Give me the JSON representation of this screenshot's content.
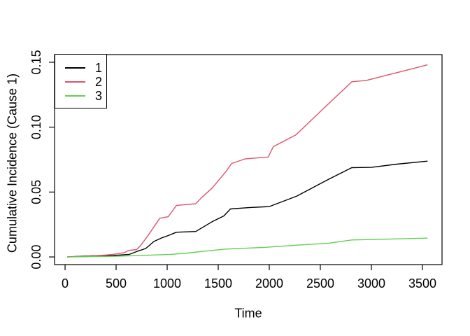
{
  "figure": {
    "background": "#ffffff",
    "text_color": "#000000"
  },
  "chart_data": {
    "type": "line",
    "title": "",
    "xlabel": "Time",
    "ylabel": "Cumulative Incidence (Cause 1)",
    "xlim": [
      -103,
      3692
    ],
    "ylim": [
      -0.0059,
      0.1559
    ],
    "x_ticks": [
      0,
      500,
      1000,
      1500,
      2000,
      2500,
      3000,
      3500
    ],
    "y_ticks": [
      "0.00",
      "0.05",
      "0.10",
      "0.15"
    ],
    "grid": false,
    "legend": {
      "position": "top-left",
      "border": true
    },
    "series": [
      {
        "name": "1",
        "color": "#000000",
        "points": [
          [
            20,
            0
          ],
          [
            150,
            0.0005
          ],
          [
            300,
            0.001
          ],
          [
            470,
            0.0011
          ],
          [
            630,
            0.002
          ],
          [
            705,
            0.0043
          ],
          [
            790,
            0.0065
          ],
          [
            870,
            0.0119
          ],
          [
            940,
            0.0145
          ],
          [
            1010,
            0.0165
          ],
          [
            1090,
            0.019
          ],
          [
            1280,
            0.0196
          ],
          [
            1440,
            0.0271
          ],
          [
            1555,
            0.0316
          ],
          [
            1620,
            0.037
          ],
          [
            1800,
            0.038
          ],
          [
            2000,
            0.0388
          ],
          [
            2270,
            0.0469
          ],
          [
            2560,
            0.059
          ],
          [
            2808,
            0.0688
          ],
          [
            3000,
            0.069
          ],
          [
            3250,
            0.0715
          ],
          [
            3550,
            0.0738
          ]
        ]
      },
      {
        "name": "2",
        "color": "#DF536B",
        "points": [
          [
            20,
            0
          ],
          [
            200,
            0.0005
          ],
          [
            400,
            0.0015
          ],
          [
            470,
            0.002
          ],
          [
            584,
            0.0034
          ],
          [
            620,
            0.005
          ],
          [
            700,
            0.0057
          ],
          [
            733,
            0.0082
          ],
          [
            800,
            0.015
          ],
          [
            860,
            0.022
          ],
          [
            927,
            0.0298
          ],
          [
            1010,
            0.031
          ],
          [
            1090,
            0.0397
          ],
          [
            1280,
            0.041
          ],
          [
            1340,
            0.046
          ],
          [
            1440,
            0.053
          ],
          [
            1578,
            0.066
          ],
          [
            1630,
            0.072
          ],
          [
            1760,
            0.0755
          ],
          [
            1990,
            0.077
          ],
          [
            2040,
            0.085
          ],
          [
            2260,
            0.094
          ],
          [
            2500,
            0.112
          ],
          [
            2808,
            0.135
          ],
          [
            2950,
            0.136
          ],
          [
            3100,
            0.139
          ],
          [
            3300,
            0.143
          ],
          [
            3550,
            0.148
          ]
        ]
      },
      {
        "name": "3",
        "color": "#61D04F",
        "points": [
          [
            20,
            0
          ],
          [
            500,
            0.0005
          ],
          [
            700,
            0.001
          ],
          [
            860,
            0.0015
          ],
          [
            1041,
            0.002
          ],
          [
            1200,
            0.003
          ],
          [
            1349,
            0.0043
          ],
          [
            1575,
            0.0061
          ],
          [
            1966,
            0.0074
          ],
          [
            2250,
            0.009
          ],
          [
            2582,
            0.0106
          ],
          [
            2808,
            0.0131
          ],
          [
            3100,
            0.0136
          ],
          [
            3550,
            0.0145
          ]
        ]
      }
    ]
  }
}
